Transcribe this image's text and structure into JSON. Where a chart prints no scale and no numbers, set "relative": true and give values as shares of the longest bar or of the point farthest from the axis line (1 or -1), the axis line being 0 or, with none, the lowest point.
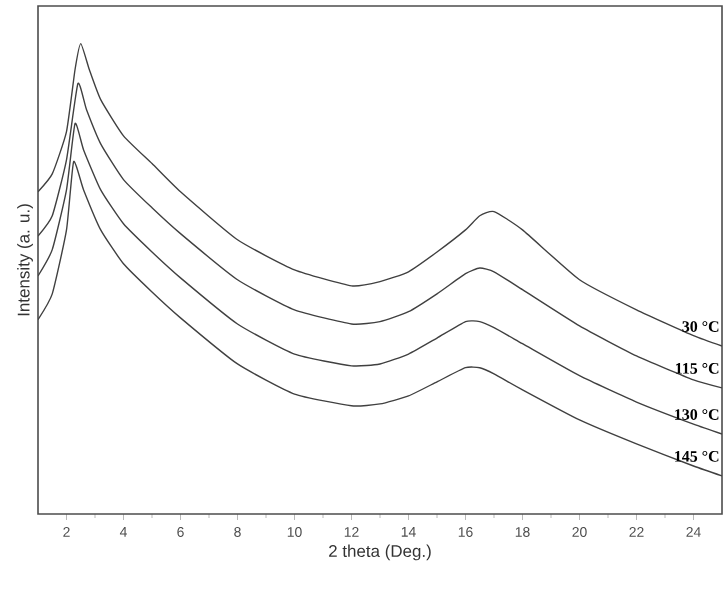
{
  "chart_data": {
    "type": "line",
    "relative": true,
    "xlabel": "2 theta (Deg.)",
    "ylabel": "Intensity (a. u.)",
    "xlim": [
      1,
      25
    ],
    "xticks": [
      2,
      4,
      6,
      8,
      10,
      12,
      14,
      16,
      18,
      20,
      22,
      24
    ],
    "grid": false,
    "legend": false,
    "marker": "none",
    "line_style": "solid",
    "series": [
      {
        "name": "30 °C",
        "color": "#404040",
        "x": [
          1,
          1.5,
          2,
          2.3,
          2.5,
          2.8,
          3.2,
          4,
          5,
          6,
          8,
          10,
          12,
          13,
          14,
          15,
          16,
          16.5,
          17,
          18,
          20,
          22,
          24,
          25
        ],
        "values": [
          0.685,
          0.723,
          0.813,
          0.945,
          1.0,
          0.945,
          0.881,
          0.804,
          0.745,
          0.685,
          0.583,
          0.519,
          0.485,
          0.494,
          0.515,
          0.557,
          0.604,
          0.634,
          0.643,
          0.604,
          0.498,
          0.434,
          0.379,
          0.357
        ]
      },
      {
        "name": "115 °C",
        "color": "#404040",
        "x": [
          1,
          1.5,
          2,
          2.4,
          2.7,
          3.2,
          4,
          5,
          6,
          8,
          10,
          12,
          13,
          14,
          15,
          16,
          16.5,
          17,
          18,
          20,
          22,
          24,
          25
        ],
        "values": [
          0.591,
          0.634,
          0.753,
          0.915,
          0.86,
          0.787,
          0.711,
          0.651,
          0.596,
          0.498,
          0.434,
          0.404,
          0.409,
          0.43,
          0.468,
          0.511,
          0.523,
          0.515,
          0.477,
          0.4,
          0.336,
          0.285,
          0.268
        ]
      },
      {
        "name": "130 °C",
        "color": "#404040",
        "x": [
          1,
          1.5,
          2,
          2.3,
          2.6,
          3.2,
          4,
          5,
          6,
          8,
          10,
          12,
          13,
          14,
          15,
          16,
          16.5,
          17,
          18,
          20,
          22,
          24,
          25
        ],
        "values": [
          0.506,
          0.562,
          0.689,
          0.83,
          0.774,
          0.689,
          0.617,
          0.557,
          0.502,
          0.404,
          0.34,
          0.315,
          0.319,
          0.34,
          0.374,
          0.409,
          0.409,
          0.396,
          0.362,
          0.294,
          0.238,
          0.191,
          0.17
        ]
      },
      {
        "name": "145 °C",
        "color": "#404040",
        "x": [
          1,
          1.5,
          2,
          2.25,
          2.6,
          3.2,
          4,
          5,
          6,
          8,
          10,
          12,
          13,
          14,
          15,
          16,
          16.5,
          17,
          18,
          20,
          22,
          24,
          25
        ],
        "values": [
          0.413,
          0.468,
          0.604,
          0.749,
          0.689,
          0.604,
          0.532,
          0.472,
          0.417,
          0.319,
          0.255,
          0.23,
          0.234,
          0.251,
          0.281,
          0.311,
          0.311,
          0.298,
          0.264,
          0.2,
          0.149,
          0.102,
          0.081
        ]
      }
    ]
  }
}
